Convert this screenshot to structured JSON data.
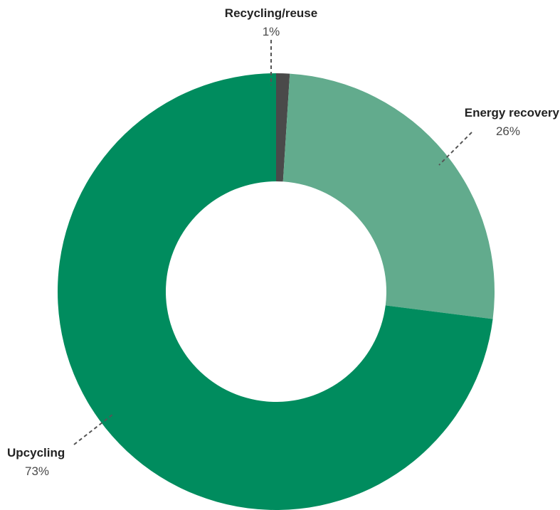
{
  "chart_data": {
    "type": "pie",
    "categories": [
      "Recycling/reuse",
      "Energy recovery",
      "Upcycling"
    ],
    "values": [
      1,
      26,
      73
    ],
    "value_labels": [
      "1%",
      "26%",
      "73%"
    ],
    "colors": [
      "#4a4a4a",
      "#62ab8d",
      "#008c5e"
    ],
    "title": "",
    "legend": "none"
  }
}
